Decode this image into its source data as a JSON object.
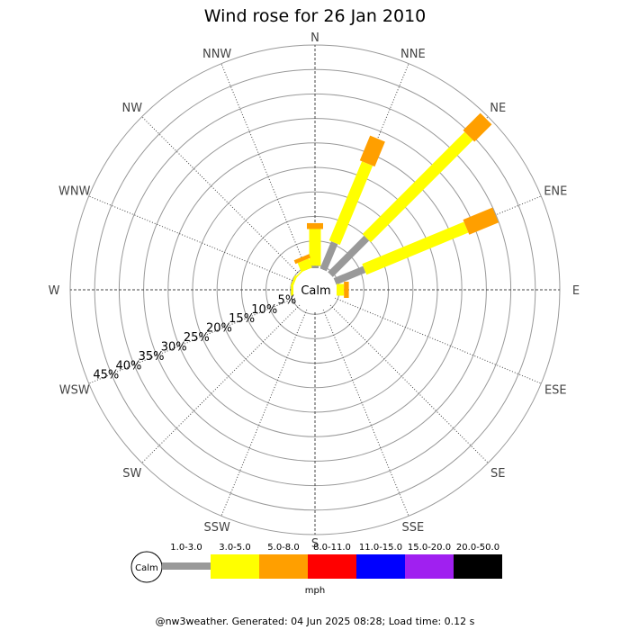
{
  "title": "Wind rose for 26 Jan 2010",
  "footer": "@nw3weather. Generated: 04 Jun 2025 08:28; Load time: 0.12 s",
  "calm_label": "Calm",
  "chart_data": {
    "type": "windrose",
    "title": "Wind rose for 26 Jan 2010",
    "unit": "mph",
    "directions": [
      "N",
      "NNE",
      "NE",
      "ENE",
      "E",
      "ESE",
      "SE",
      "SSE",
      "S",
      "SSW",
      "SW",
      "WSW",
      "W",
      "WNW",
      "NW",
      "NNW"
    ],
    "radial_ticks": [
      "5%",
      "10%",
      "15%",
      "20%",
      "25%",
      "30%",
      "35%",
      "40%",
      "45%"
    ],
    "radial_max": 50,
    "grid": true,
    "bins": [
      {
        "label": "1.0-3.0",
        "color": "#999999"
      },
      {
        "label": "3.0-5.0",
        "color": "#ffff00"
      },
      {
        "label": "5.0-8.0",
        "color": "#ff9f00"
      },
      {
        "label": "8.0-11.0",
        "color": "#ff0000"
      },
      {
        "label": "11.0-15.0",
        "color": "#0000ff"
      },
      {
        "label": "15.0-20.0",
        "color": "#a020f0"
      },
      {
        "label": "20.0-50.0",
        "color": "#000000"
      }
    ],
    "series": [
      {
        "direction": "N",
        "values": [
          0.5,
          7.5,
          1.2,
          0,
          0,
          0,
          0
        ]
      },
      {
        "direction": "NNE",
        "values": [
          6.0,
          17.5,
          5.5,
          0,
          0,
          0,
          0
        ]
      },
      {
        "direction": "NE",
        "values": [
          10.5,
          29.5,
          5.0,
          0,
          0,
          0,
          0
        ]
      },
      {
        "direction": "ENE",
        "values": [
          6.5,
          22.5,
          6.5,
          0,
          0,
          0,
          0
        ]
      },
      {
        "direction": "E",
        "values": [
          0,
          1.5,
          1.0,
          0,
          0,
          0,
          0
        ]
      },
      {
        "direction": "W",
        "values": [
          0,
          0.5,
          0,
          0,
          0,
          0,
          0
        ]
      },
      {
        "direction": "WNW",
        "values": [
          0,
          0.5,
          0,
          0,
          0,
          0,
          0
        ]
      },
      {
        "direction": "NW",
        "values": [
          0,
          0.3,
          0,
          0,
          0,
          0,
          0
        ]
      },
      {
        "direction": "NNW",
        "values": [
          0,
          2.0,
          0.8,
          0,
          0,
          0,
          0
        ]
      }
    ]
  }
}
